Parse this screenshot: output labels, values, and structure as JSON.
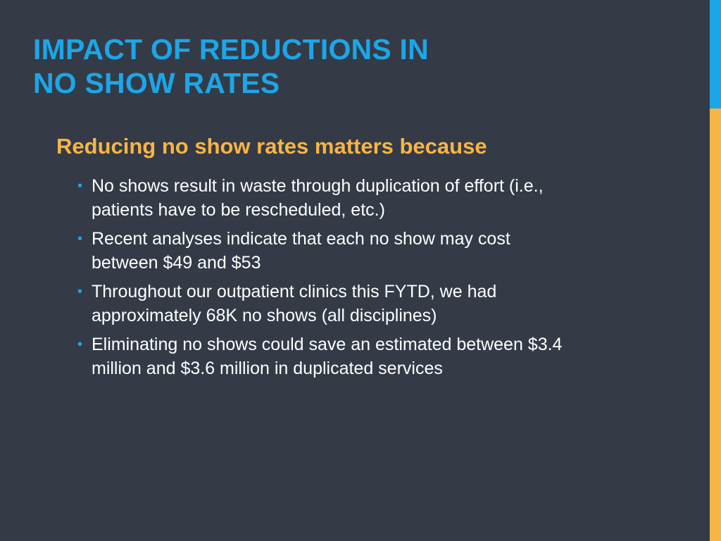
{
  "colors": {
    "background": "#343b47",
    "title": "#1ca6e8",
    "subtitle": "#f8b444",
    "bullet_marker": "#1ca6e8",
    "body_text": "#ffffff",
    "accent_top": "#1ca6e8",
    "accent_bottom": "#f8b444"
  },
  "slide": {
    "title_lines": [
      "IMPACT OF REDUCTIONS IN",
      "NO SHOW RATES"
    ],
    "subtitle": "Reducing no show rates matters because",
    "bullet_glyph": "•",
    "bullets": [
      {
        "line1": "No shows result in waste through duplication of effort (i.e.,",
        "line2": "patients have to be rescheduled, etc.)"
      },
      {
        "line1": "Recent analyses indicate that each no show may cost",
        "line2": "between $49 and $53"
      },
      {
        "line1": "Throughout our outpatient clinics this FYTD, we had",
        "line2": "approximately 68K no shows (all disciplines)"
      },
      {
        "line1": "Eliminating no shows could save an estimated between $3.4",
        "line2": "million and $3.6 million in duplicated services"
      }
    ]
  }
}
